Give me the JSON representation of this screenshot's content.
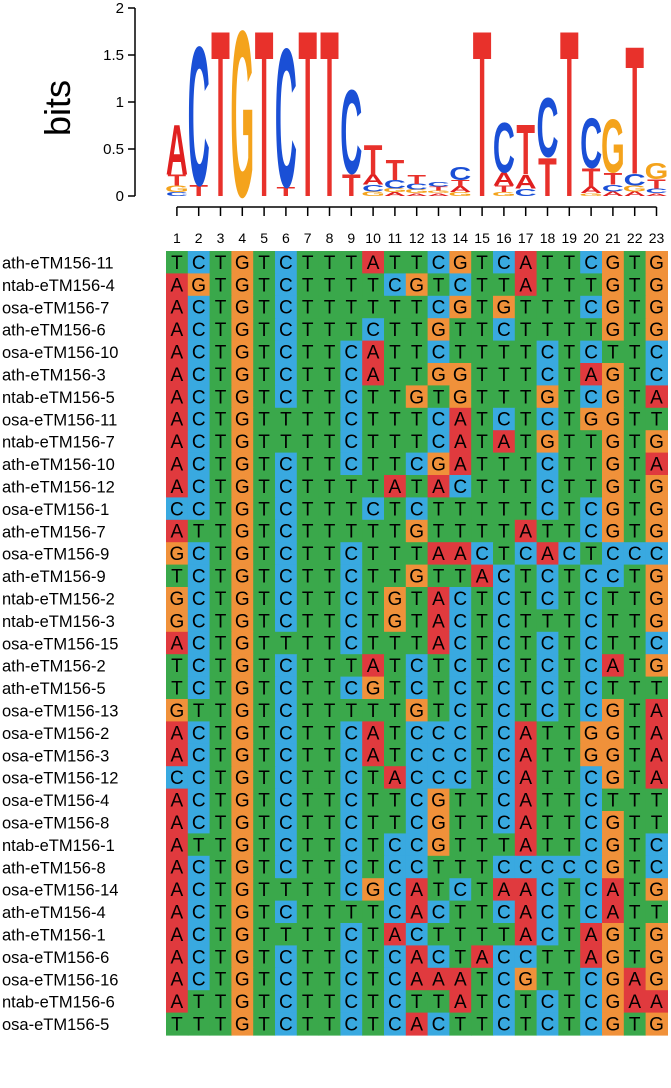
{
  "logo": {
    "ylabel": "bits",
    "yticks": [
      "0",
      "0.5",
      "1",
      "1.5",
      "2"
    ],
    "positions": [
      "1",
      "2",
      "3",
      "4",
      "5",
      "6",
      "7",
      "8",
      "9",
      "10",
      "11",
      "12",
      "13",
      "14",
      "15",
      "16",
      "17",
      "18",
      "19",
      "20",
      "21",
      "22",
      "23"
    ],
    "stacks": [
      [
        [
          "A",
          0.55
        ],
        [
          "T",
          0.12
        ],
        [
          "G",
          0.07
        ],
        [
          "C",
          0.04
        ]
      ],
      [
        [
          "C",
          1.52
        ],
        [
          "T",
          0.12
        ]
      ],
      [
        [
          "T",
          1.82
        ]
      ],
      [
        [
          "G",
          1.82
        ]
      ],
      [
        [
          "T",
          1.82
        ]
      ],
      [
        [
          "C",
          1.52
        ],
        [
          "T",
          0.1
        ]
      ],
      [
        [
          "T",
          1.82
        ]
      ],
      [
        [
          "T",
          1.82
        ]
      ],
      [
        [
          "C",
          0.92
        ],
        [
          "T",
          0.24
        ]
      ],
      [
        [
          "T",
          0.33
        ],
        [
          "A",
          0.11
        ],
        [
          "C",
          0.07
        ],
        [
          "G",
          0.05
        ]
      ],
      [
        [
          "T",
          0.22
        ],
        [
          "C",
          0.09
        ],
        [
          "G",
          0.04
        ],
        [
          "A",
          0.04
        ]
      ],
      [
        [
          "T",
          0.1
        ],
        [
          "C",
          0.06
        ],
        [
          "G",
          0.04
        ],
        [
          "A",
          0.03
        ]
      ],
      [
        [
          "C",
          0.05
        ],
        [
          "T",
          0.04
        ],
        [
          "G",
          0.03
        ],
        [
          "A",
          0.03
        ]
      ],
      [
        [
          "C",
          0.14
        ],
        [
          "T",
          0.07
        ],
        [
          "A",
          0.06
        ],
        [
          "G",
          0.04
        ]
      ],
      [
        [
          "T",
          1.82
        ]
      ],
      [
        [
          "C",
          0.55
        ],
        [
          "A",
          0.14
        ],
        [
          "T",
          0.07
        ],
        [
          "G",
          0.04
        ]
      ],
      [
        [
          "T",
          0.55
        ],
        [
          "A",
          0.15
        ],
        [
          "C",
          0.08
        ]
      ],
      [
        [
          "C",
          0.65
        ],
        [
          "T",
          0.42
        ]
      ],
      [
        [
          "T",
          1.82
        ]
      ],
      [
        [
          "C",
          0.55
        ],
        [
          "T",
          0.2
        ],
        [
          "A",
          0.07
        ],
        [
          "G",
          0.03
        ]
      ],
      [
        [
          "G",
          0.58
        ],
        [
          "T",
          0.13
        ],
        [
          "C",
          0.07
        ],
        [
          "A",
          0.05
        ]
      ],
      [
        [
          "T",
          1.4
        ],
        [
          "C",
          0.13
        ],
        [
          "G",
          0.06
        ],
        [
          "A",
          0.05
        ]
      ],
      [
        [
          "G",
          0.18
        ],
        [
          "T",
          0.1
        ],
        [
          "C",
          0.05
        ],
        [
          "A",
          0.03
        ]
      ]
    ]
  },
  "colors": {
    "A": "#e02020",
    "C": "#1a4fd6",
    "G": "#f4a31c",
    "T": "#e8312b"
  },
  "cell_colors": {
    "A": "#e03a3e",
    "C": "#39a9e0",
    "G": "#f0913a",
    "T": "#3aa84b"
  },
  "alignment": [
    {
      "name": "ath-eTM156-11",
      "seq": "TCTGTCTTTATTCGTCATTCGTG"
    },
    {
      "name": "ntab-eTM156-4",
      "seq": "AGTGTCTTTTCGTCTTATTTGTG"
    },
    {
      "name": "osa-eTM156-7",
      "seq": "ACTGTCTTTTTTCGTGTTTCGTG"
    },
    {
      "name": "ath-eTM156-6",
      "seq": "ACTGTCTTTCTTGTTCTTTTGTG"
    },
    {
      "name": "osa-eTM156-10",
      "seq": "ACTGTCTTCATTCTTTTCTCTTC"
    },
    {
      "name": "ath-eTM156-3",
      "seq": "ACTGTCTTCATTGGTTTCTAGTC"
    },
    {
      "name": "ntab-eTM156-5",
      "seq": "ACTGTCTTCTTGTGTTTGTCGTA"
    },
    {
      "name": "osa-eTM156-11",
      "seq": "ACTGTTTTCTTTCATCTCTGGTT"
    },
    {
      "name": "ntab-eTM156-7",
      "seq": "ACTGTTTTCTTTCATATGTTGTG"
    },
    {
      "name": "ath-eTM156-10",
      "seq": "ACTGTCTTCTTCGATTTCTTGTA"
    },
    {
      "name": "ath-eTM156-12",
      "seq": "ACTGTCTTTTATACTTTCTTGTG"
    },
    {
      "name": "osa-eTM156-1",
      "seq": "CCTGTCTTTCTCTTTTTCTCGTG"
    },
    {
      "name": "ath-eTM156-7",
      "seq": "ATTGTCTTTTTGTTTTATTCGTG"
    },
    {
      "name": "osa-eTM156-9",
      "seq": "GCTGTCTTCTTTAACTCACTCCC"
    },
    {
      "name": "ath-eTM156-9",
      "seq": "TCTGTCTTCTTGTTACTCTCCTG"
    },
    {
      "name": "ntab-eTM156-2",
      "seq": "GCTGTCTTCTGTACTCTCTCTTG"
    },
    {
      "name": "ntab-eTM156-3",
      "seq": "GCTGTCTTCTGTACTCTTTCTTG"
    },
    {
      "name": "osa-eTM156-15",
      "seq": "ACTGTTTTCTTTACTCTCTCTTC"
    },
    {
      "name": "ath-eTM156-2",
      "seq": "TCTGTCTTTATCTCTCTCTCATG"
    },
    {
      "name": "ath-eTM156-5",
      "seq": "TCTGTCTTCGTCTCTCTCTCTTT"
    },
    {
      "name": "osa-eTM156-13",
      "seq": "GTTGTCTTTTTGTCTCTCTCGTA"
    },
    {
      "name": "osa-eTM156-2",
      "seq": "ACTGTCTTCATCCCTCATTGGTA"
    },
    {
      "name": "osa-eTM156-3",
      "seq": "ACTGTCTTCATCCCTCATTGGTA"
    },
    {
      "name": "osa-eTM156-12",
      "seq": "CCTGTCTTCTACCCTCATTCGTA"
    },
    {
      "name": "osa-eTM156-4",
      "seq": "ACTGTCTTCTTCGTTCATTCTTT"
    },
    {
      "name": "osa-eTM156-8",
      "seq": "ACTGTCTTCTTCGTTCATTCGTT"
    },
    {
      "name": "ntab-eTM156-1",
      "seq": "ATTGTCTTCTCCGTTTATTCGTC"
    },
    {
      "name": "ath-eTM156-8",
      "seq": "ACTGTCTTCTCCTTTCCCCCGTC"
    },
    {
      "name": "osa-eTM156-14",
      "seq": "ACTGTTTTCGCATCTAACTCATG"
    },
    {
      "name": "ath-eTM156-4",
      "seq": "ACTGTCTTTTCACTTCACTCATT"
    },
    {
      "name": "ath-eTM156-1",
      "seq": "ACTGTTTTCTACTTTTACTAGTG"
    },
    {
      "name": "osa-eTM156-6",
      "seq": "ACTGTCTTCTCACTACCTTAGTG"
    },
    {
      "name": "osa-eTM156-16",
      "seq": "ACTGTCTTCTCAAATCGTTCGAG"
    },
    {
      "name": "ntab-eTM156-6",
      "seq": "ATTGTCTTCTCTTATCTCTCGAA"
    },
    {
      "name": "osa-eTM156-5",
      "seq": "TTTGTCTTCTCACTTCTCTCGTG"
    }
  ]
}
